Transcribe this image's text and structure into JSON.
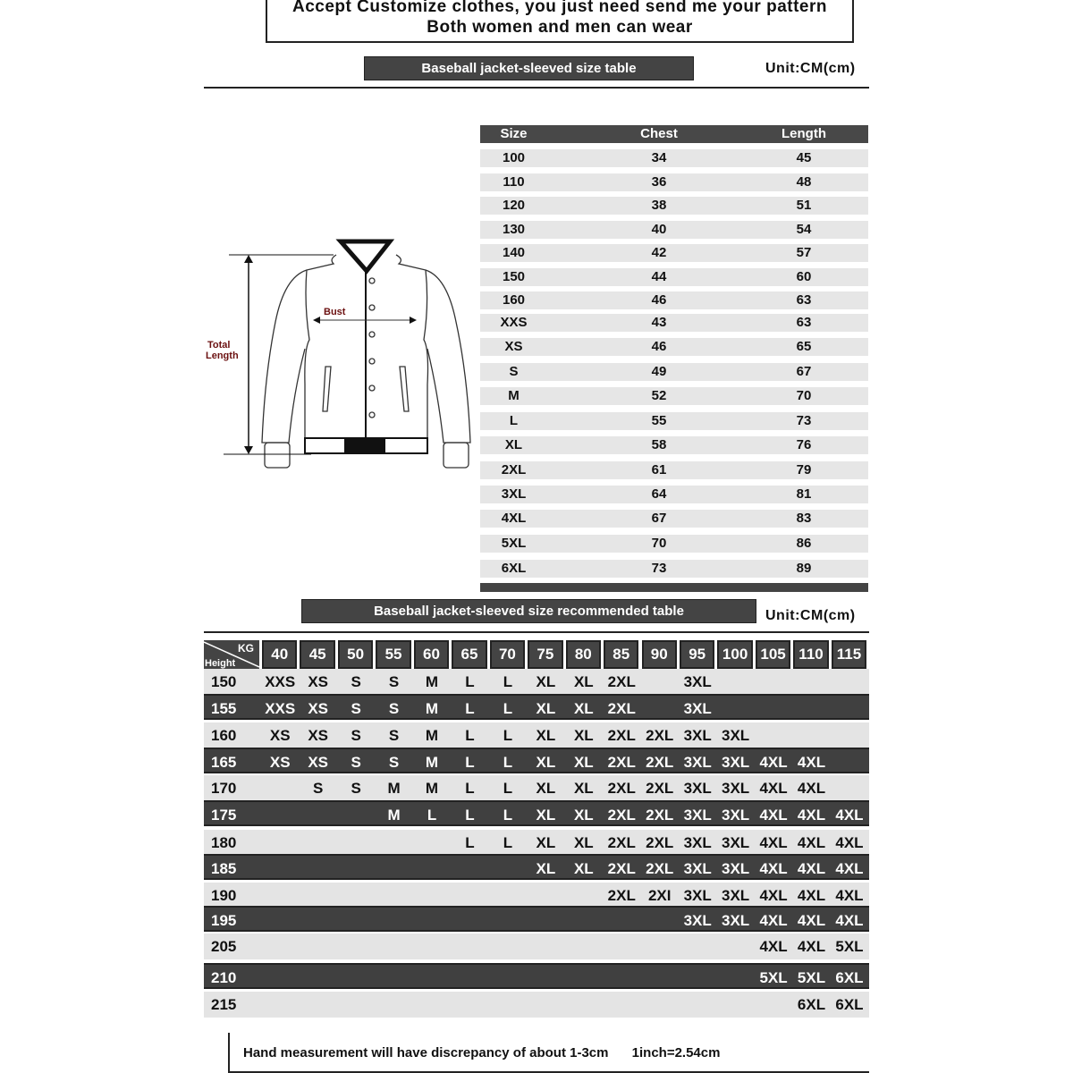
{
  "banner": {
    "line1": "Accept Customize clothes, you just need send me your pattern",
    "line2": "Both women and men can wear"
  },
  "size_section": {
    "title": "Baseball jacket-sleeved size  table",
    "unit": "Unit:CM(cm)",
    "diagram_labels": {
      "bust": "Bust",
      "total_length_1": "Total",
      "total_length_2": "Length"
    },
    "columns": [
      "Size",
      "Chest",
      "Length"
    ],
    "rows": [
      [
        "100",
        "34",
        "45"
      ],
      [
        "110",
        "36",
        "48"
      ],
      [
        "120",
        "38",
        "51"
      ],
      [
        "130",
        "40",
        "54"
      ],
      [
        "140",
        "42",
        "57"
      ],
      [
        "150",
        "44",
        "60"
      ],
      [
        "160",
        "46",
        "63"
      ],
      [
        "XXS",
        "43",
        "63"
      ],
      [
        "XS",
        "46",
        "65"
      ],
      [
        "S",
        "49",
        "67"
      ],
      [
        "M",
        "52",
        "70"
      ],
      [
        "L",
        "55",
        "73"
      ],
      [
        "XL",
        "58",
        "76"
      ],
      [
        "2XL",
        "61",
        "79"
      ],
      [
        "3XL",
        "64",
        "81"
      ],
      [
        "4XL",
        "67",
        "83"
      ],
      [
        "5XL",
        "70",
        "86"
      ],
      [
        "6XL",
        "73",
        "89"
      ]
    ]
  },
  "recommend_section": {
    "title": "Baseball jacket-sleeved size recommended table",
    "unit": "Unit:CM(cm)",
    "corner_kg": "KG",
    "corner_height": "Height",
    "weights": [
      "40",
      "45",
      "50",
      "55",
      "60",
      "65",
      "70",
      "75",
      "80",
      "85",
      "90",
      "95",
      "100",
      "105",
      "110",
      "115"
    ],
    "rows": [
      {
        "height": "150",
        "sizes": [
          "XXS",
          "XS",
          "S",
          "S",
          "M",
          "L",
          "L",
          "XL",
          "XL",
          "2XL",
          "",
          "3XL",
          "",
          "",
          "",
          ""
        ]
      },
      {
        "height": "155",
        "sizes": [
          "XXS",
          "XS",
          "S",
          "S",
          "M",
          "L",
          "L",
          "XL",
          "XL",
          "2XL",
          "",
          "3XL",
          "",
          "",
          "",
          ""
        ]
      },
      {
        "height": "160",
        "sizes": [
          "XS",
          "XS",
          "S",
          "S",
          "M",
          "L",
          "L",
          "XL",
          "XL",
          "2XL",
          "2XL",
          "3XL",
          "3XL",
          "",
          "",
          ""
        ]
      },
      {
        "height": "165",
        "sizes": [
          "XS",
          "XS",
          "S",
          "S",
          "M",
          "L",
          "L",
          "XL",
          "XL",
          "2XL",
          "2XL",
          "3XL",
          "3XL",
          "4XL",
          "4XL",
          ""
        ]
      },
      {
        "height": "170",
        "sizes": [
          "",
          "S",
          "S",
          "M",
          "M",
          "L",
          "L",
          "XL",
          "XL",
          "2XL",
          "2XL",
          "3XL",
          "3XL",
          "4XL",
          "4XL",
          ""
        ]
      },
      {
        "height": "175",
        "sizes": [
          "",
          "",
          "",
          "M",
          "L",
          "L",
          "L",
          "XL",
          "XL",
          "2XL",
          "2XL",
          "3XL",
          "3XL",
          "4XL",
          "4XL",
          "4XL"
        ]
      },
      {
        "height": "180",
        "sizes": [
          "",
          "",
          "",
          "",
          "",
          "L",
          "L",
          "XL",
          "XL",
          "2XL",
          "2XL",
          "3XL",
          "3XL",
          "4XL",
          "4XL",
          "4XL"
        ]
      },
      {
        "height": "185",
        "sizes": [
          "",
          "",
          "",
          "",
          "",
          "",
          "",
          "XL",
          "XL",
          "2XL",
          "2XL",
          "3XL",
          "3XL",
          "4XL",
          "4XL",
          "4XL"
        ]
      },
      {
        "height": "190",
        "sizes": [
          "",
          "",
          "",
          "",
          "",
          "",
          "",
          "",
          "",
          "2XL",
          "2XI",
          "3XL",
          "3XL",
          "4XL",
          "4XL",
          "4XL"
        ]
      },
      {
        "height": "195",
        "sizes": [
          "",
          "",
          "",
          "",
          "",
          "",
          "",
          "",
          "",
          "",
          "",
          "3XL",
          "3XL",
          "4XL",
          "4XL",
          "4XL"
        ]
      },
      {
        "height": "205",
        "sizes": [
          "",
          "",
          "",
          "",
          "",
          "",
          "",
          "",
          "",
          "",
          "",
          "",
          "",
          "4XL",
          "4XL",
          "5XL"
        ]
      },
      {
        "height": "210",
        "sizes": [
          "",
          "",
          "",
          "",
          "",
          "",
          "",
          "",
          "",
          "",
          "",
          "",
          "",
          "5XL",
          "5XL",
          "6XL"
        ]
      },
      {
        "height": "215",
        "sizes": [
          "",
          "",
          "",
          "",
          "",
          "",
          "",
          "",
          "",
          "",
          "",
          "",
          "",
          "",
          "6XL",
          "6XL"
        ]
      }
    ],
    "dark_rows": [
      "155",
      "165",
      "175",
      "185",
      "195",
      "210"
    ]
  },
  "footer": {
    "note": "Hand measurement will have discrepancy of about  1-3cm",
    "conversion": "1inch=2.54cm"
  },
  "colors": {
    "dark_bar": "#444444",
    "light_row": "#e6e6e6",
    "label_red": "#6b1010"
  }
}
